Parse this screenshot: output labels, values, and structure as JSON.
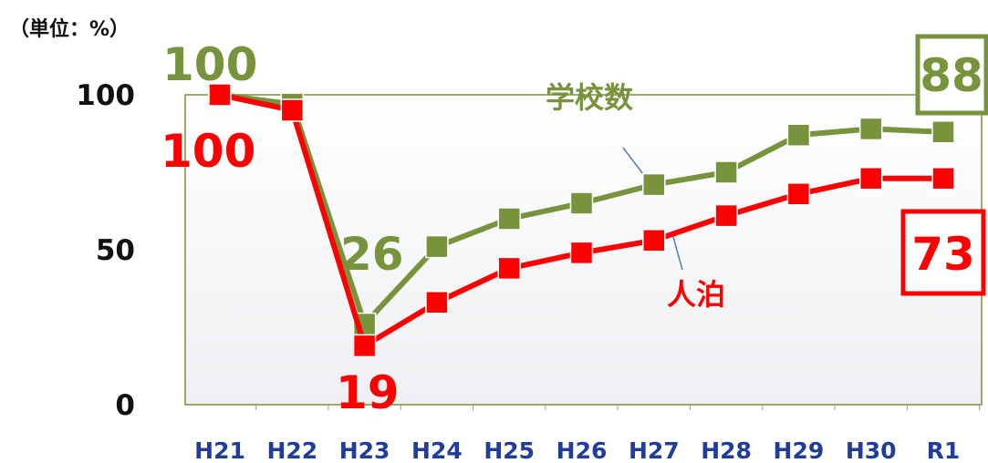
{
  "unit_label": "（単位：%）",
  "chart_data": {
    "type": "line",
    "categories": [
      "H21",
      "H22",
      "H23",
      "H24",
      "H25",
      "H26",
      "H27",
      "H28",
      "H29",
      "H30",
      "R1"
    ],
    "series": [
      {
        "name": "学校数",
        "values": [
          100,
          97,
          26,
          51,
          60,
          65,
          71,
          75,
          87,
          89,
          88
        ],
        "color": "#77933c"
      },
      {
        "name": "人泊",
        "values": [
          100,
          95,
          19,
          33,
          44,
          49,
          53,
          61,
          68,
          73,
          73
        ],
        "color": "#ff0000"
      }
    ],
    "yticks": [
      "0",
      "50",
      "100"
    ],
    "ylim": [
      0,
      100
    ],
    "annotations": {
      "school_start": "100",
      "school_min": "26",
      "school_end": "88",
      "stay_start": "100",
      "stay_min": "19",
      "stay_end": "73"
    }
  }
}
